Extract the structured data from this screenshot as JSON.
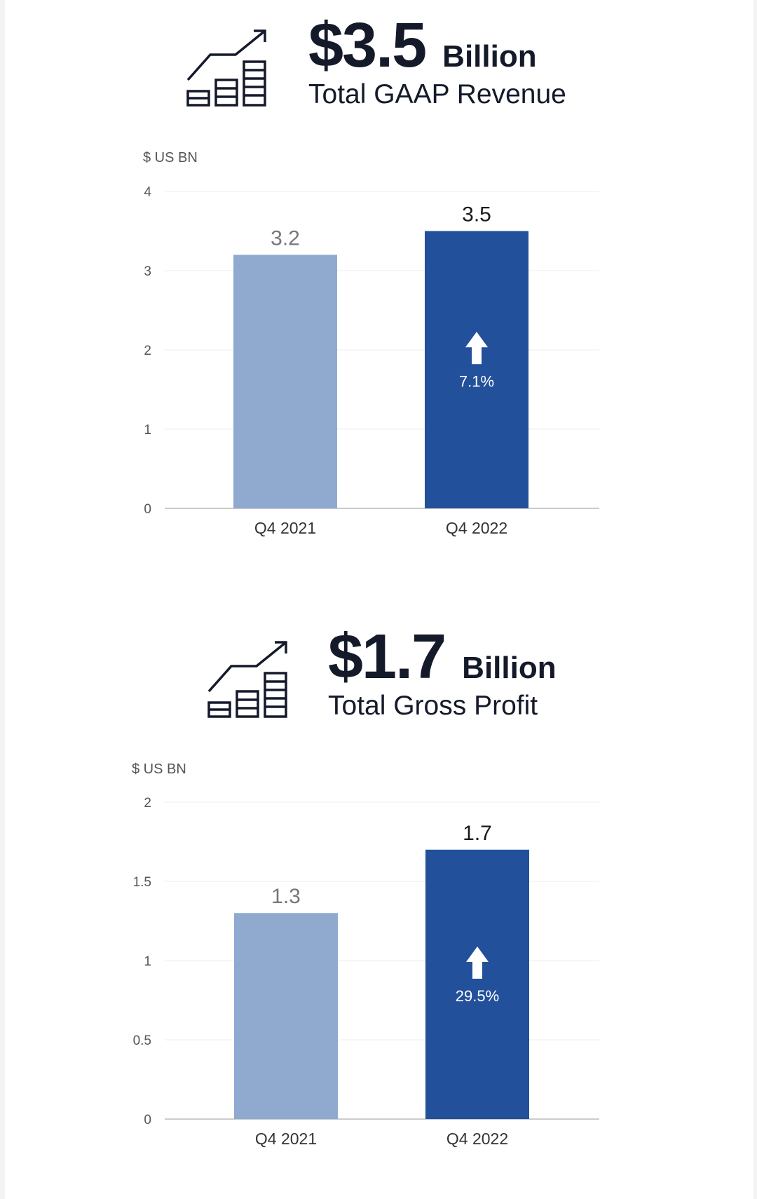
{
  "colors": {
    "prev_bar": "#90aacf",
    "curr_bar": "#22509b",
    "prev_label": "#777777",
    "curr_label": "#1a1a1a",
    "grid": "#ececec",
    "axis": "#cccccc"
  },
  "icons": [
    "growth-chart-icon",
    "arrow-up-icon"
  ],
  "panels": [
    {
      "headline": {
        "value": "$3.5",
        "unit": "Billion",
        "label": "Total GAAP Revenue"
      },
      "unit_label": "$ US BN"
    },
    {
      "headline": {
        "value": "$1.7",
        "unit": "Billion",
        "label": "Total Gross Profit"
      },
      "unit_label": "$ US BN"
    }
  ],
  "chart_data": [
    {
      "type": "bar",
      "title": "Total GAAP Revenue",
      "ylabel": "$ US BN",
      "categories": [
        "Q4 2021",
        "Q4 2022"
      ],
      "values": [
        3.2,
        3.5
      ],
      "value_labels": [
        "3.2",
        "3.5"
      ],
      "growth": {
        "text": "7.1%",
        "direction": "up"
      },
      "ylim": [
        0,
        4
      ],
      "yticks": [
        0,
        1,
        2,
        3,
        4
      ],
      "ytick_labels": [
        "0",
        "1",
        "2",
        "3",
        "4"
      ],
      "grid": true
    },
    {
      "type": "bar",
      "title": "Total Gross Profit",
      "ylabel": "$ US BN",
      "categories": [
        "Q4 2021",
        "Q4 2022"
      ],
      "values": [
        1.3,
        1.7
      ],
      "value_labels": [
        "1.3",
        "1.7"
      ],
      "growth": {
        "text": "29.5%",
        "direction": "up"
      },
      "ylim": [
        0,
        2
      ],
      "yticks": [
        0,
        0.5,
        1,
        1.5,
        2
      ],
      "ytick_labels": [
        "0",
        "0.5",
        "1",
        "1.5",
        "2"
      ],
      "grid": true
    }
  ]
}
